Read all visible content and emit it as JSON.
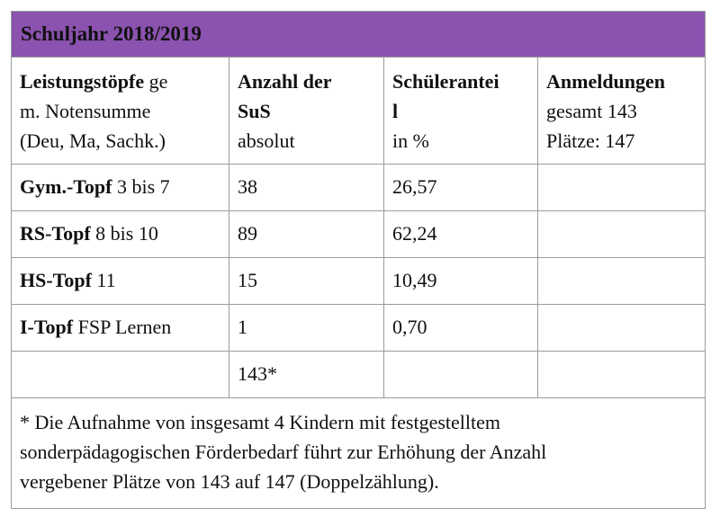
{
  "title": "Schuljahr 2018/2019",
  "header": {
    "col1_bold": "Leistungstöpfe",
    "col1_rest_line1": " ge",
    "col1_line2": "m. Notensumme",
    "col1_line3": "(Deu, Ma, Sachk.)",
    "col2_line1": "Anzahl der",
    "col2_line2": "SuS",
    "col2_line3": "absolut",
    "col3_line1": "Schüleranteil",
    "col3_line1a": "Schülerantei",
    "col3_line2": "l",
    "col3_line3": "in %",
    "col4_line1": "Anmeldungen",
    "col4_line2": "gesamt 143",
    "col4_line3": "Plätze: 147"
  },
  "rows": [
    {
      "name_bold": "Gym.-Topf",
      "name_rest": " 3 bis 7",
      "count": "38",
      "percent": "26,57",
      "extra": ""
    },
    {
      "name_bold": "RS-Topf",
      "name_rest": " 8 bis 10",
      "count": "89",
      "percent": "62,24",
      "extra": ""
    },
    {
      "name_bold": "HS-Topf",
      "name_rest": " 11",
      "count": "15",
      "percent": "10,49",
      "extra": ""
    },
    {
      "name_bold": "I-Topf",
      "name_rest": " FSP Lernen",
      "count": "1",
      "percent": "0,70",
      "extra": ""
    },
    {
      "name_bold": "",
      "name_rest": "",
      "count": "143*",
      "percent": "",
      "extra": ""
    }
  ],
  "footnote": {
    "line1": "* Die Aufnahme von insgesamt 4 Kindern mit festgestelltem",
    "line2": "sonderpädagogischen Förderbedarf führt zur Erhöhung der Anzahl",
    "line3": "vergebener Plätze von 143 auf 147 (Doppelzählung)."
  }
}
